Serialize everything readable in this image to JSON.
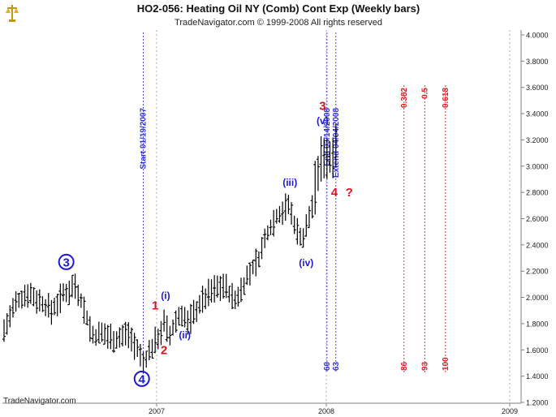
{
  "window": {
    "title": "HO2-056:  Heating Oil NY (Comb) Cont Exp  (Weekly bars)",
    "copyright": "TradeNavigator.com © 1999-2008 All rights reserved",
    "watermark": "TradeNavigator.com",
    "logo_icon": "scales-logo-icon"
  },
  "chart_data": {
    "type": "ohlc",
    "title": "HO2-056:  Heating Oil NY (Comb) Cont Exp  (Weekly bars)",
    "subtitle": "TradeNavigator.com © 1999-2008 All rights reserved",
    "xlabel": "",
    "ylabel": "",
    "x_ticks": [
      "2007",
      "2008",
      "2009"
    ],
    "y_ticks": [
      "4.0000",
      "3.8000",
      "3.6000",
      "3.4000",
      "3.2000",
      "3.0000",
      "2.8000",
      "2.6000",
      "2.4000",
      "2.2000",
      "2.0000",
      "1.8000",
      "1.6000",
      "1.4000",
      "1.2000"
    ],
    "ylim": [
      1.2,
      4.0
    ],
    "grid": false,
    "y_axis_position": "right",
    "colors": {
      "bars": "#000000",
      "wave_major": "#1a1ad8",
      "wave_minor_red": "#e01020",
      "time_line": "#3333dd",
      "fib_line": "#e02020",
      "axis": "#808080"
    },
    "anchor_points": [
      {
        "week": 0,
        "price": 1.75
      },
      {
        "week": 4,
        "price": 1.95
      },
      {
        "week": 8,
        "price": 2.04
      },
      {
        "week": 12,
        "price": 1.97
      },
      {
        "week": 16,
        "price": 1.9
      },
      {
        "week": 20,
        "price": 2.02
      },
      {
        "week": 24,
        "price": 2.1
      },
      {
        "week": 26,
        "price": 1.98
      },
      {
        "week": 30,
        "price": 1.7
      },
      {
        "week": 34,
        "price": 1.72
      },
      {
        "week": 38,
        "price": 1.68
      },
      {
        "week": 42,
        "price": 1.73
      },
      {
        "week": 45,
        "price": 1.6
      },
      {
        "week": 47,
        "price": 1.5
      },
      {
        "week": 49,
        "price": 1.58
      },
      {
        "week": 52,
        "price": 1.7
      },
      {
        "week": 54,
        "price": 1.8
      },
      {
        "week": 56,
        "price": 1.7
      },
      {
        "week": 58,
        "price": 1.82
      },
      {
        "week": 60,
        "price": 1.88
      },
      {
        "week": 62,
        "price": 1.8
      },
      {
        "week": 66,
        "price": 1.95
      },
      {
        "week": 70,
        "price": 2.05
      },
      {
        "week": 74,
        "price": 2.1
      },
      {
        "week": 78,
        "price": 1.97
      },
      {
        "week": 82,
        "price": 2.15
      },
      {
        "week": 86,
        "price": 2.3
      },
      {
        "week": 89,
        "price": 2.5
      },
      {
        "week": 92,
        "price": 2.62
      },
      {
        "week": 96,
        "price": 2.7
      },
      {
        "week": 99,
        "price": 2.5
      },
      {
        "week": 101,
        "price": 2.45
      },
      {
        "week": 104,
        "price": 2.7
      },
      {
        "week": 106,
        "price": 2.95
      },
      {
        "week": 108,
        "price": 3.1
      },
      {
        "week": 110,
        "price": 3.05
      },
      {
        "week": 112,
        "price": 3.2
      }
    ],
    "time_lines": [
      {
        "week": 47,
        "label": "Start 01/19/2007",
        "count": ""
      },
      {
        "week": 109,
        "label": "End 03/14/2008",
        "count": "60"
      },
      {
        "week": 112,
        "label": "Extend 04/04/2008",
        "count": "63"
      }
    ],
    "fib_lines": [
      {
        "week": 135,
        "label": "0.382",
        "count": "86"
      },
      {
        "week": 142,
        "label": "0.5",
        "count": "93"
      },
      {
        "week": 149,
        "label": "0.618",
        "count": "100"
      }
    ],
    "wave_labels": [
      {
        "text": "3",
        "style": "circle",
        "color": "blue",
        "week": 21,
        "price": 2.27
      },
      {
        "text": "4",
        "style": "circle",
        "color": "blue",
        "week": 46.5,
        "price": 1.38
      },
      {
        "text": "1",
        "style": "plain",
        "color": "red",
        "week": 51,
        "price": 1.94
      },
      {
        "text": "2",
        "style": "plain",
        "color": "red",
        "week": 54,
        "price": 1.6
      },
      {
        "text": "(i)",
        "style": "plain",
        "color": "blue",
        "week": 54.5,
        "price": 2.02
      },
      {
        "text": "(ii)",
        "style": "plain",
        "color": "blue",
        "week": 61,
        "price": 1.72
      },
      {
        "text": "(iii)",
        "style": "plain",
        "color": "blue",
        "week": 96.5,
        "price": 2.88
      },
      {
        "text": "(iv)",
        "style": "plain",
        "color": "blue",
        "week": 102,
        "price": 2.27
      },
      {
        "text": "(v)",
        "style": "plain",
        "color": "blue",
        "week": 107.5,
        "price": 3.35
      },
      {
        "text": "3",
        "style": "plain",
        "color": "red",
        "week": 107.5,
        "price": 3.46
      },
      {
        "text": "4",
        "style": "plain",
        "color": "red",
        "week": 111.5,
        "price": 2.8
      },
      {
        "text": "?",
        "style": "plain",
        "color": "red",
        "week": 116.5,
        "price": 2.8
      }
    ]
  }
}
